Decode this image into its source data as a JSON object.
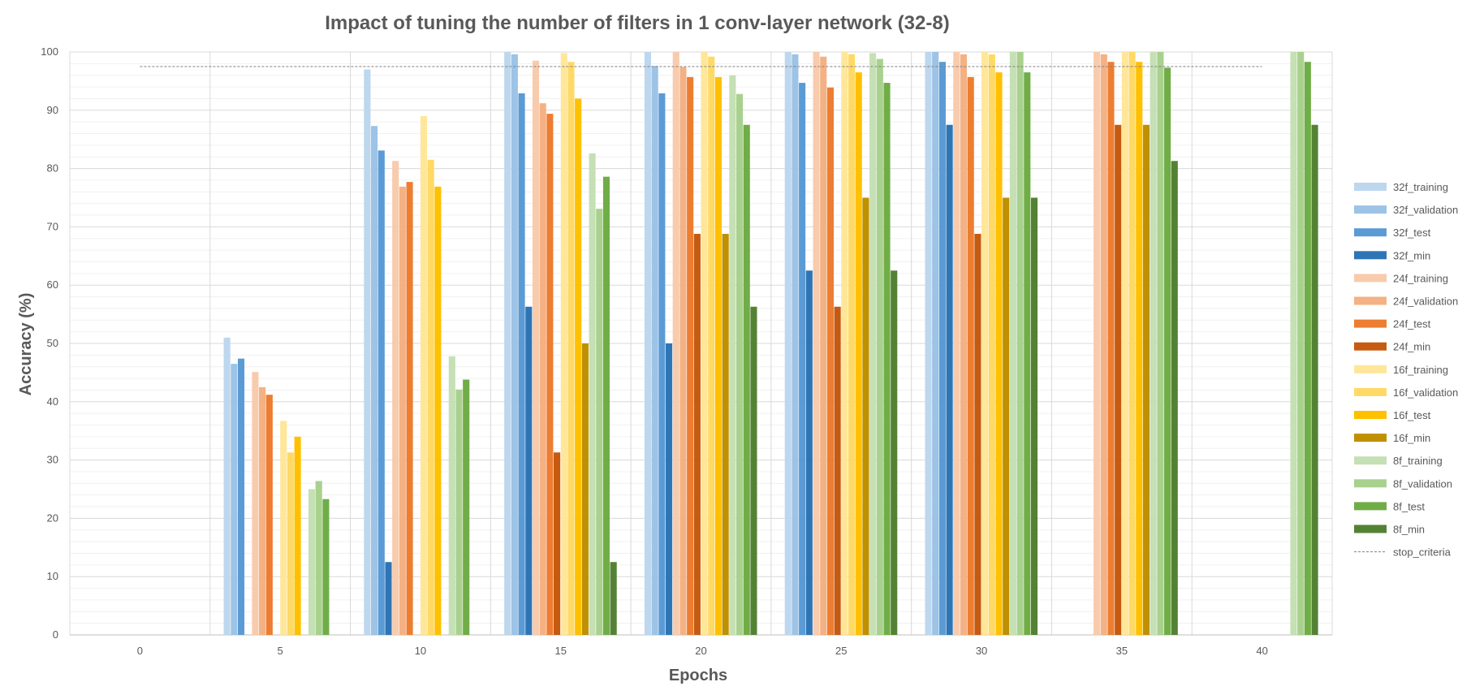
{
  "chart_data": {
    "type": "bar",
    "title": "Impact of tuning the number of filters in 1 conv-layer network (32-8)",
    "xlabel": "Epochs",
    "ylabel": "Accuracy (%)",
    "ylim": [
      0,
      100
    ],
    "yticks": [
      0,
      10,
      20,
      30,
      40,
      50,
      60,
      70,
      80,
      90,
      100
    ],
    "categories": [
      "0",
      "5",
      "10",
      "15",
      "20",
      "25",
      "30",
      "35",
      "40"
    ],
    "grid": true,
    "legend_position": "right",
    "series": [
      {
        "name": "32f_training",
        "color": "#bdd7ee",
        "values": [
          null,
          51.0,
          97.0,
          100,
          100,
          100,
          100,
          null,
          null
        ]
      },
      {
        "name": "32f_validation",
        "color": "#9dc3e6",
        "values": [
          null,
          46.5,
          87.3,
          99.6,
          97.6,
          99.6,
          100,
          null,
          null
        ]
      },
      {
        "name": "32f_test",
        "color": "#5b9bd5",
        "values": [
          null,
          47.4,
          83.1,
          92.9,
          92.9,
          94.7,
          98.3,
          null,
          null
        ]
      },
      {
        "name": "32f_min",
        "color": "#2e75b6",
        "values": [
          null,
          null,
          12.5,
          56.3,
          50.0,
          62.5,
          87.5,
          null,
          null
        ]
      },
      {
        "name": "24f_training",
        "color": "#f8cbad",
        "values": [
          null,
          45.1,
          81.3,
          98.5,
          100,
          100,
          100,
          100,
          null
        ]
      },
      {
        "name": "24f_validation",
        "color": "#f4b183",
        "values": [
          null,
          42.5,
          76.9,
          91.2,
          97.4,
          99.2,
          99.6,
          99.6,
          null
        ]
      },
      {
        "name": "24f_test",
        "color": "#ed7d31",
        "values": [
          null,
          41.2,
          77.7,
          89.4,
          95.7,
          93.9,
          95.7,
          98.3,
          null
        ]
      },
      {
        "name": "24f_min",
        "color": "#c55a11",
        "values": [
          null,
          null,
          null,
          31.3,
          68.8,
          56.3,
          68.8,
          87.5,
          null
        ]
      },
      {
        "name": "16f_training",
        "color": "#ffe699",
        "values": [
          null,
          36.7,
          89.0,
          99.8,
          100,
          100,
          100,
          100,
          null
        ]
      },
      {
        "name": "16f_validation",
        "color": "#ffd966",
        "values": [
          null,
          31.3,
          81.5,
          98.3,
          99.2,
          99.6,
          99.6,
          100,
          null
        ]
      },
      {
        "name": "16f_test",
        "color": "#ffc000",
        "values": [
          null,
          34.0,
          76.9,
          92.0,
          95.7,
          96.5,
          96.5,
          98.3,
          null
        ]
      },
      {
        "name": "16f_min",
        "color": "#bf9000",
        "values": [
          null,
          null,
          null,
          50.0,
          68.8,
          75.0,
          75.0,
          87.5,
          null
        ]
      },
      {
        "name": "8f_training",
        "color": "#c5e0b4",
        "values": [
          null,
          25.0,
          47.8,
          82.6,
          96.0,
          99.8,
          100,
          100,
          100
        ]
      },
      {
        "name": "8f_validation",
        "color": "#a9d18e",
        "values": [
          null,
          26.4,
          42.1,
          73.1,
          92.8,
          98.8,
          100,
          100,
          100
        ]
      },
      {
        "name": "8f_test",
        "color": "#70ad47",
        "values": [
          null,
          23.3,
          43.8,
          78.6,
          87.5,
          94.7,
          96.5,
          97.3,
          98.3
        ]
      },
      {
        "name": "8f_min",
        "color": "#548235",
        "values": [
          null,
          null,
          null,
          12.5,
          56.3,
          62.5,
          75.0,
          81.3,
          87.5
        ]
      }
    ],
    "reference_line": {
      "name": "stop_criteria",
      "value": 97.5,
      "style": "dashed",
      "color": "#808080"
    }
  }
}
